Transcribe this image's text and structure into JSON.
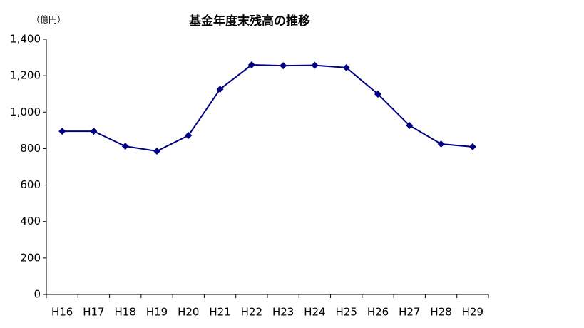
{
  "chart_data": {
    "type": "line",
    "title": "基金年度末残高の推移",
    "y_unit_label": "（億円）",
    "categories": [
      "H16",
      "H17",
      "H18",
      "H19",
      "H20",
      "H21",
      "H22",
      "H23",
      "H24",
      "H25",
      "H26",
      "H27",
      "H28",
      "H29"
    ],
    "values": [
      895,
      895,
      813,
      786,
      872,
      1126,
      1259,
      1255,
      1257,
      1244,
      1099,
      927,
      825,
      810
    ],
    "color": "#000080",
    "marker": "diamond",
    "ylim": [
      0,
      1400
    ],
    "yticks": [
      0,
      200,
      400,
      600,
      800,
      {
        "value": 1000,
        "label": "1,000"
      },
      {
        "value": 1200,
        "label": "1,200"
      },
      {
        "value": 1400,
        "label": "1,400"
      }
    ],
    "grid": false
  }
}
